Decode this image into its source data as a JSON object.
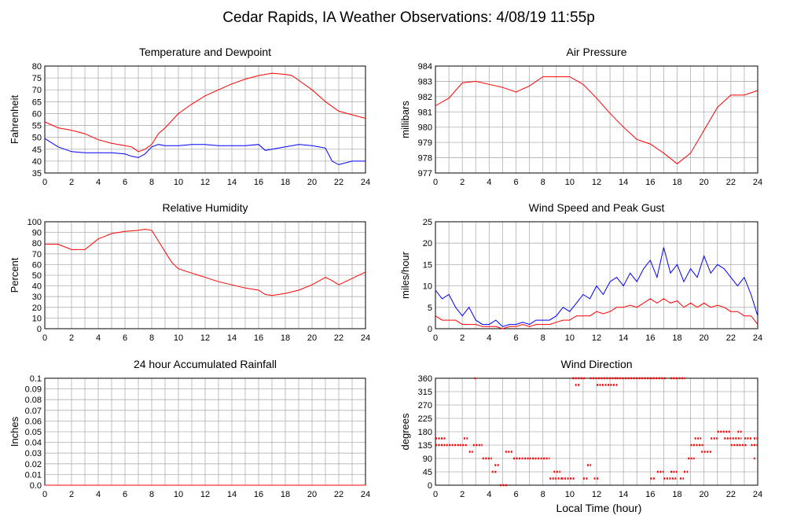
{
  "page_title": "Cedar Rapids, IA Weather Observations: 4/08/19 11:55p",
  "x_axis_label": "Local Time (hour)",
  "colors": {
    "red": "#ff0000",
    "blue": "#0000ff",
    "grid": "#b0b0b0"
  },
  "chart_data": [
    {
      "id": "temp",
      "type": "line",
      "title": "Temperature and Dewpoint",
      "ylabel": "Fahrenheit",
      "xlim": [
        0,
        24
      ],
      "ylim": [
        35,
        80
      ],
      "xticks": [
        0,
        2,
        4,
        6,
        8,
        10,
        12,
        14,
        16,
        18,
        20,
        22,
        24
      ],
      "yticks": [
        35,
        40,
        45,
        50,
        55,
        60,
        65,
        70,
        75,
        80
      ],
      "series": [
        {
          "color": "red",
          "x": [
            0,
            1,
            2,
            3,
            4,
            5,
            6,
            6.5,
            7,
            7.5,
            8,
            8.5,
            9,
            10,
            11,
            12,
            13,
            14,
            15,
            16,
            17,
            18,
            18.5,
            19,
            20,
            21,
            22,
            23,
            24
          ],
          "y": [
            56.5,
            54,
            53,
            51.5,
            49,
            47.5,
            46.5,
            46,
            44,
            45,
            47,
            51.5,
            54,
            60,
            64,
            67.5,
            70,
            72.5,
            74.5,
            76,
            77,
            76.5,
            76,
            74,
            70,
            65,
            61,
            59.5,
            58
          ]
        },
        {
          "color": "blue",
          "x": [
            0,
            1,
            2,
            3,
            4,
            5,
            6,
            6.5,
            7,
            7.5,
            8,
            8.5,
            9,
            10,
            11,
            12,
            13,
            14,
            15,
            16,
            16.5,
            17,
            18,
            19,
            20,
            21,
            21.5,
            22,
            23,
            24
          ],
          "y": [
            49.5,
            46,
            44,
            43.5,
            43.5,
            43.5,
            43,
            42,
            41.5,
            43,
            46,
            47,
            46.5,
            46.5,
            47,
            47,
            46.5,
            46.5,
            46.5,
            47,
            44.5,
            45,
            46,
            47,
            46.5,
            45.5,
            40,
            38.5,
            40,
            40
          ]
        }
      ]
    },
    {
      "id": "pressure",
      "type": "line",
      "title": "Air Pressure",
      "ylabel": "millibars",
      "xlim": [
        0,
        24
      ],
      "ylim": [
        977,
        984
      ],
      "xticks": [
        0,
        2,
        4,
        6,
        8,
        10,
        12,
        14,
        16,
        18,
        20,
        22,
        24
      ],
      "yticks": [
        977,
        978,
        979,
        980,
        981,
        982,
        983,
        984
      ],
      "series": [
        {
          "color": "red",
          "x": [
            0,
            1,
            2,
            3,
            4,
            5,
            6,
            7,
            8,
            9,
            10,
            11,
            12,
            13,
            14,
            15,
            16,
            17,
            18,
            19,
            20,
            21,
            22,
            23,
            24
          ],
          "y": [
            981.4,
            981.9,
            982.9,
            983.0,
            982.8,
            982.6,
            982.3,
            982.7,
            983.3,
            983.3,
            983.3,
            982.8,
            981.9,
            980.9,
            980.0,
            979.2,
            978.9,
            978.3,
            977.6,
            978.3,
            979.8,
            981.3,
            982.1,
            982.1,
            982.4
          ]
        }
      ]
    },
    {
      "id": "rh",
      "type": "line",
      "title": "Relative Humidity",
      "ylabel": "Percent",
      "xlim": [
        0,
        24
      ],
      "ylim": [
        0,
        100
      ],
      "xticks": [
        0,
        2,
        4,
        6,
        8,
        10,
        12,
        14,
        16,
        18,
        20,
        22,
        24
      ],
      "yticks": [
        0,
        10,
        20,
        30,
        40,
        50,
        60,
        70,
        80,
        90,
        100
      ],
      "series": [
        {
          "color": "red",
          "x": [
            0,
            1,
            2,
            3,
            4,
            5,
            6,
            7,
            7.5,
            8,
            9,
            9.5,
            10,
            11,
            12,
            13,
            14,
            15,
            16,
            16.5,
            17,
            18,
            19,
            20,
            21,
            21.5,
            22,
            23,
            24
          ],
          "y": [
            79,
            79,
            74,
            74,
            84,
            89,
            91,
            92,
            93,
            92,
            72,
            62,
            56,
            52,
            48,
            44,
            41,
            38,
            36,
            32,
            31,
            33,
            36,
            41,
            48,
            45,
            41,
            47,
            53
          ]
        }
      ]
    },
    {
      "id": "wind",
      "type": "line",
      "title": "Wind Speed and Peak Gust",
      "ylabel": "miles/hour",
      "xlim": [
        0,
        24
      ],
      "ylim": [
        0,
        25
      ],
      "xticks": [
        0,
        2,
        4,
        6,
        8,
        10,
        12,
        14,
        16,
        18,
        20,
        22,
        24
      ],
      "yticks": [
        0,
        5,
        10,
        15,
        20,
        25
      ],
      "series": [
        {
          "color": "blue",
          "x": [
            0,
            0.5,
            1,
            1.5,
            2,
            2.5,
            3,
            3.5,
            4,
            4.5,
            5,
            5.5,
            6,
            6.5,
            7,
            7.5,
            8,
            8.5,
            9,
            9.5,
            10,
            10.5,
            11,
            11.5,
            12,
            12.5,
            13,
            13.5,
            14,
            14.5,
            15,
            15.5,
            16,
            16.5,
            17,
            17.5,
            18,
            18.5,
            19,
            19.5,
            20,
            20.5,
            21,
            21.5,
            22,
            22.5,
            23,
            23.5,
            24
          ],
          "y": [
            9,
            7,
            8,
            5,
            3,
            5,
            2,
            1,
            1,
            2,
            0.5,
            1,
            1,
            1.5,
            1,
            2,
            2,
            2,
            3,
            5,
            4,
            6,
            8,
            7,
            10,
            8,
            11,
            12,
            10,
            13,
            11,
            14,
            16,
            12,
            19,
            13,
            15,
            11,
            14,
            12,
            17,
            13,
            15,
            14,
            12,
            10,
            12,
            8,
            3
          ]
        },
        {
          "color": "red",
          "x": [
            0,
            0.5,
            1,
            1.5,
            2,
            2.5,
            3,
            3.5,
            4,
            4.5,
            5,
            5.5,
            6,
            6.5,
            7,
            7.5,
            8,
            8.5,
            9,
            9.5,
            10,
            10.5,
            11,
            11.5,
            12,
            12.5,
            13,
            13.5,
            14,
            14.5,
            15,
            15.5,
            16,
            16.5,
            17,
            17.5,
            18,
            18.5,
            19,
            19.5,
            20,
            20.5,
            21,
            21.5,
            22,
            22.5,
            23,
            23.5,
            24
          ],
          "y": [
            3,
            2,
            2,
            2,
            1,
            1,
            1,
            0.5,
            0.5,
            0.5,
            0,
            0.5,
            0.5,
            1,
            0.5,
            1,
            1,
            1,
            1.5,
            2,
            2,
            3,
            3,
            3,
            4,
            3.5,
            4,
            5,
            5,
            5.5,
            5,
            6,
            7,
            6,
            7,
            6,
            6.5,
            5,
            6,
            5,
            6,
            5,
            5.5,
            5,
            4,
            4,
            3,
            3,
            1
          ]
        }
      ]
    },
    {
      "id": "rain",
      "type": "line",
      "title": "24 hour Accumulated Rainfall",
      "ylabel": "Inches",
      "xlim": [
        0,
        24
      ],
      "ylim": [
        0,
        0.1
      ],
      "xticks": [
        0,
        2,
        4,
        6,
        8,
        10,
        12,
        14,
        16,
        18,
        20,
        22,
        24
      ],
      "yticks": [
        "0.0",
        "0.01",
        "0.02",
        "0.03",
        "0.04",
        "0.05",
        "0.06",
        "0.07",
        "0.08",
        "0.09",
        "0.1"
      ],
      "series": [
        {
          "color": "red",
          "x": [
            0,
            24
          ],
          "y": [
            0,
            0
          ]
        }
      ]
    },
    {
      "id": "wdir",
      "type": "scatter",
      "title": "Wind Direction",
      "ylabel": "degrees",
      "xlim": [
        0,
        24
      ],
      "ylim": [
        0,
        360
      ],
      "xticks": [
        0,
        2,
        4,
        6,
        8,
        10,
        12,
        14,
        16,
        18,
        20,
        22,
        24
      ],
      "yticks": [
        0,
        45,
        90,
        135,
        180,
        225,
        270,
        315,
        360
      ],
      "series": [
        {
          "color": "red",
          "segments": [
            [
              0,
              0.8,
              135
            ],
            [
              0,
              0.8,
              157.5
            ],
            [
              0.8,
              1.8,
              135
            ],
            [
              1.8,
              2.4,
              135
            ],
            [
              2.1,
              2.4,
              157.5
            ],
            [
              2.5,
              2.8,
              112.5
            ],
            [
              2.8,
              3.5,
              135
            ],
            [
              2.9,
              3.0,
              360
            ],
            [
              3.5,
              4.2,
              90
            ],
            [
              4.2,
              4.6,
              45
            ],
            [
              4.4,
              4.8,
              67.5
            ],
            [
              4.8,
              5.4,
              0
            ],
            [
              5.2,
              5.8,
              112.5
            ],
            [
              5.8,
              7.0,
              90
            ],
            [
              7.0,
              8.5,
              90
            ],
            [
              8.5,
              9.4,
              22.5
            ],
            [
              8.8,
              9.3,
              45
            ],
            [
              9.4,
              10.4,
              22.5
            ],
            [
              10.2,
              11.2,
              360
            ],
            [
              10.4,
              10.8,
              337.5
            ],
            [
              11.0,
              11.4,
              22.5
            ],
            [
              11.3,
              11.6,
              67.5
            ],
            [
              11.8,
              12.2,
              22.5
            ],
            [
              11.5,
              13.5,
              360
            ],
            [
              12.0,
              13.6,
              337.5
            ],
            [
              13.5,
              16.0,
              360
            ],
            [
              16.0,
              17.2,
              360
            ],
            [
              16.0,
              16.4,
              22.5
            ],
            [
              16.5,
              17.0,
              45
            ],
            [
              17.0,
              18.0,
              22.5
            ],
            [
              17.5,
              18.0,
              45
            ],
            [
              18.2,
              18.5,
              22.5
            ],
            [
              17.5,
              18.6,
              360
            ],
            [
              18.5,
              18.8,
              45
            ],
            [
              18.8,
              19.3,
              90
            ],
            [
              19.0,
              20.0,
              135
            ],
            [
              19.3,
              19.8,
              157.5
            ],
            [
              19.8,
              20.6,
              112.5
            ],
            [
              20.5,
              21.0,
              157.5
            ],
            [
              21.0,
              22.0,
              180
            ],
            [
              21.5,
              22.8,
              157.5
            ],
            [
              22.0,
              23.2,
              135
            ],
            [
              22.5,
              22.8,
              180
            ],
            [
              23.0,
              23.6,
              157.5
            ],
            [
              23.5,
              24.0,
              135
            ],
            [
              23.7,
              24.0,
              157.5
            ],
            [
              23.7,
              23.8,
              90
            ]
          ]
        }
      ]
    }
  ]
}
